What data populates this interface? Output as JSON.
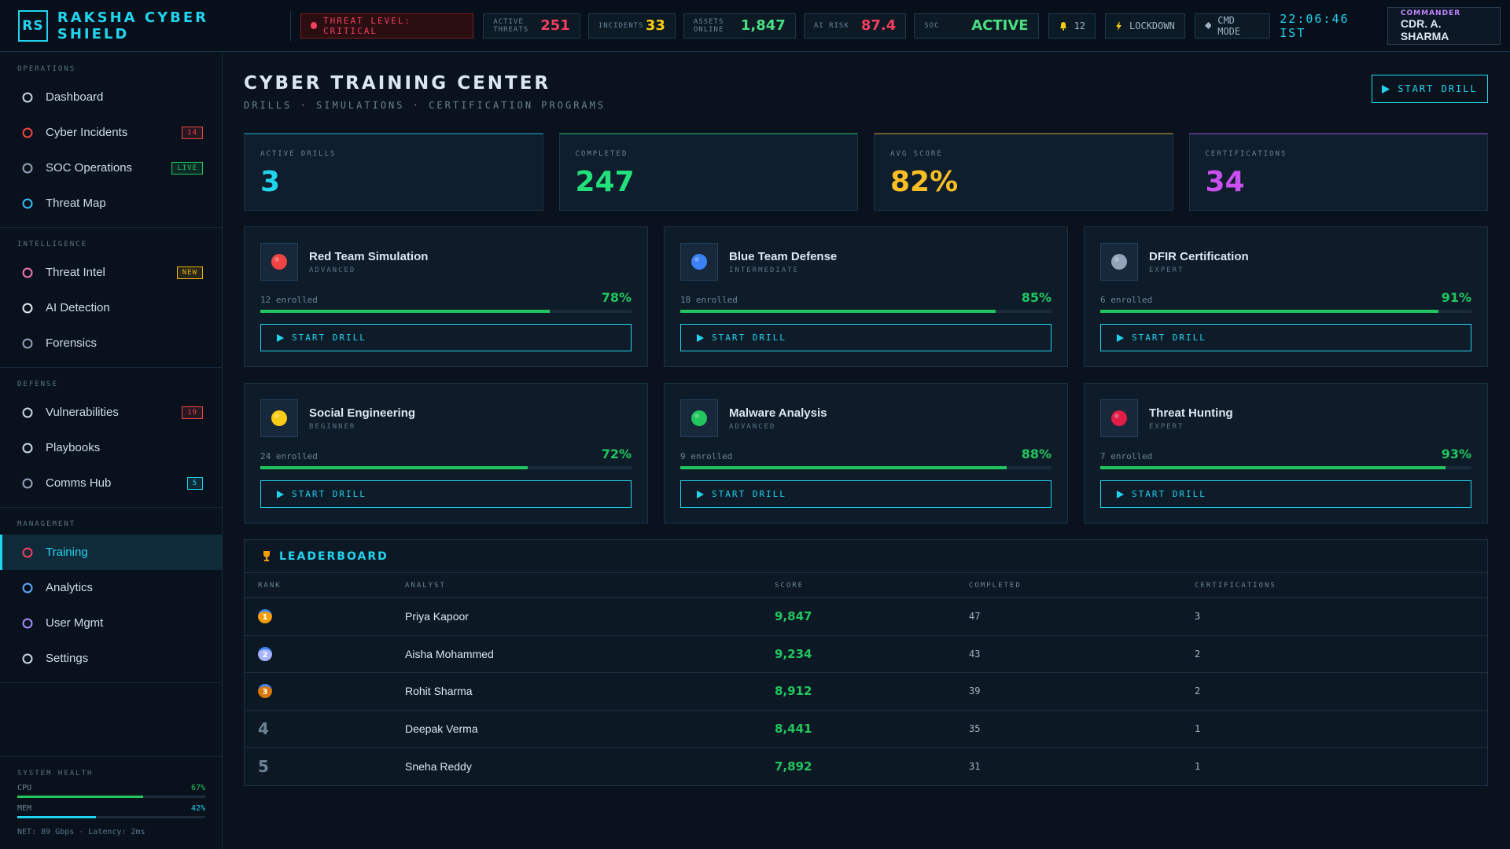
{
  "header": {
    "logo": "RS",
    "title": "RAKSHA CYBER SHIELD",
    "threat_level": "THREAT LEVEL: CRITICAL",
    "stats": [
      {
        "label": "ACTIVE THREATS",
        "value": 251,
        "color": "#f43f5e"
      },
      {
        "label": "INCIDENTS",
        "value": 33,
        "color": "#facc15"
      },
      {
        "label": "ASSETS ONLINE",
        "value": "1,847",
        "color": "#4ade80"
      },
      {
        "label": "AI RISK",
        "value": 87.4,
        "color": "#f43f5e"
      },
      {
        "label": "SOC",
        "value": "ACTIVE",
        "color": "#4ade80"
      }
    ],
    "alerts": 12,
    "lockdown": "LOCKDOWN",
    "cmd_mode": "CMD MODE",
    "clock": "22:06:46 IST",
    "user": {
      "role": "COMMANDER",
      "name": "CDR. A. SHARMA"
    }
  },
  "sidebar": {
    "sections": [
      {
        "title": "OPERATIONS",
        "items": [
          {
            "label": "Dashboard"
          },
          {
            "label": "Cyber Incidents",
            "badge": 14,
            "badge_color": "#ef4444"
          },
          {
            "label": "SOC Operations",
            "badge": "LIVE",
            "badge_color": "#22c55e"
          },
          {
            "label": "Threat Map"
          }
        ]
      },
      {
        "title": "INTELLIGENCE",
        "items": [
          {
            "label": "Threat Intel",
            "badge": "NEW",
            "badge_color": "#eab308"
          },
          {
            "label": "AI Detection"
          },
          {
            "label": "Forensics"
          }
        ]
      },
      {
        "title": "DEFENSE",
        "items": [
          {
            "label": "Vulnerabilities",
            "badge": 19,
            "badge_color": "#ef4444"
          },
          {
            "label": "Playbooks"
          },
          {
            "label": "Comms Hub",
            "badge": 5,
            "badge_color": "#22d3ee"
          }
        ]
      },
      {
        "title": "MANAGEMENT",
        "items": [
          {
            "label": "Training",
            "active": true
          },
          {
            "label": "Analytics"
          },
          {
            "label": "User Mgmt"
          },
          {
            "label": "Settings"
          }
        ]
      }
    ],
    "health": {
      "title": "SYSTEM HEALTH",
      "metrics": [
        {
          "label": "CPU",
          "usage": {
            "value": 67,
            "label": "67%"
          },
          "color": "#22c55e"
        },
        {
          "label": "MEM",
          "usage": {
            "value": 42,
            "label": "42%"
          },
          "color": "#22d3ee"
        }
      ],
      "footer": "NET: 89 Gbps · Latency: 2ms"
    }
  },
  "page": {
    "title": "CYBER TRAINING CENTER",
    "subtitle": "DRILLS · SIMULATIONS · CERTIFICATION PROGRAMS",
    "button": "START DRILL",
    "kpis": [
      {
        "label": "ACTIVE DRILLS",
        "value": 3,
        "color": "#22d3ee"
      },
      {
        "label": "COMPLETED",
        "value": 247,
        "color": "#22e07a"
      },
      {
        "label": "AVG SCORE",
        "value": "82%",
        "color": "#fbbf24"
      },
      {
        "label": "CERTIFICATIONS",
        "value": 34,
        "color": "#c94ff0"
      }
    ],
    "courses": [
      {
        "name": "Red Team Simulation",
        "level": "ADVANCED",
        "enrolled": "12 enrolled",
        "progress": {
          "value": 78,
          "label": "78%"
        },
        "button": "START DRILL",
        "color": "#ef4444"
      },
      {
        "name": "Blue Team Defense",
        "level": "INTERMEDIATE",
        "enrolled": "18 enrolled",
        "progress": {
          "value": 85,
          "label": "85%"
        },
        "button": "START DRILL",
        "color": "#3b82f6"
      },
      {
        "name": "DFIR Certification",
        "level": "EXPERT",
        "enrolled": "6 enrolled",
        "progress": {
          "value": 91,
          "label": "91%"
        },
        "button": "START DRILL",
        "color": "#94a3b8"
      },
      {
        "name": "Social Engineering",
        "level": "BEGINNER",
        "enrolled": "24 enrolled",
        "progress": {
          "value": 72,
          "label": "72%"
        },
        "button": "START DRILL",
        "color": "#facc15"
      },
      {
        "name": "Malware Analysis",
        "level": "ADVANCED",
        "enrolled": "9 enrolled",
        "progress": {
          "value": 88,
          "label": "88%"
        },
        "button": "START DRILL",
        "color": "#22c55e"
      },
      {
        "name": "Threat Hunting",
        "level": "EXPERT",
        "enrolled": "7 enrolled",
        "progress": {
          "value": 93,
          "label": "93%"
        },
        "button": "START DRILL",
        "color": "#e11d48"
      }
    ],
    "leaderboard": {
      "title": "LEADERBOARD",
      "columns": [
        "RANK",
        "ANALYST",
        "SCORE",
        "COMPLETED",
        "CERTIFICATIONS"
      ],
      "rows": [
        {
          "rank": 1,
          "analyst": "Priya Kapoor",
          "score": "9,847",
          "completed": 47,
          "certifications": 3
        },
        {
          "rank": 2,
          "analyst": "Aisha Mohammed",
          "score": "9,234",
          "completed": 43,
          "certifications": 2
        },
        {
          "rank": 3,
          "analyst": "Rohit Sharma",
          "score": "8,912",
          "completed": 39,
          "certifications": 2
        },
        {
          "rank": 4,
          "analyst": "Deepak Verma",
          "score": "8,441",
          "completed": 35,
          "certifications": 1
        },
        {
          "rank": 5,
          "analyst": "Sneha Reddy",
          "score": "7,892",
          "completed": 31,
          "certifications": 1
        }
      ]
    }
  }
}
